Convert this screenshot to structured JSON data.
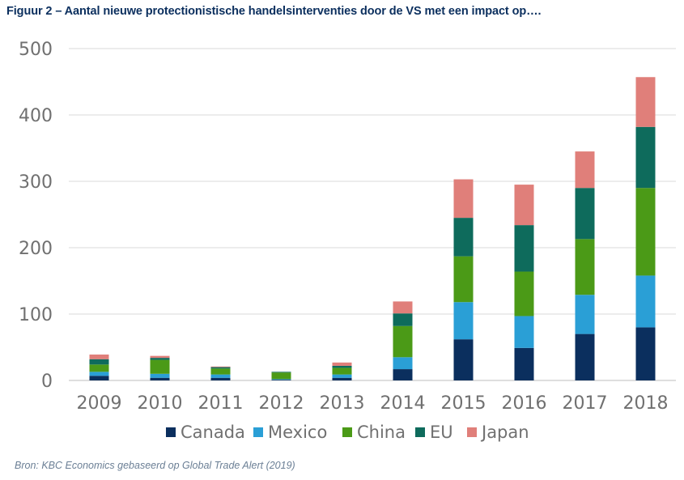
{
  "title": "Figuur 2 – Aantal nieuwe protectionistische handelsinterventies door de VS met een impact op….",
  "source": "Bron: KBC Economics gebaseerd op Global Trade Alert (2019)",
  "chart_data": {
    "type": "bar",
    "stacked": true,
    "categories": [
      "2009",
      "2010",
      "2011",
      "2012",
      "2013",
      "2014",
      "2015",
      "2016",
      "2017",
      "2018"
    ],
    "series": [
      {
        "name": "Canada",
        "color": "#0b2f5e",
        "values": [
          7,
          4,
          4,
          1,
          4,
          17,
          62,
          49,
          70,
          80
        ]
      },
      {
        "name": "Mexico",
        "color": "#2a9fd6",
        "values": [
          6,
          6,
          5,
          1,
          5,
          18,
          56,
          48,
          59,
          78
        ]
      },
      {
        "name": "China",
        "color": "#4b9a17",
        "values": [
          11,
          21,
          9,
          10,
          10,
          47,
          69,
          67,
          84,
          132
        ]
      },
      {
        "name": "EU",
        "color": "#0e6b5c",
        "values": [
          8,
          3,
          2,
          1,
          3,
          19,
          58,
          70,
          77,
          92
        ]
      },
      {
        "name": "Japan",
        "color": "#e07f7a",
        "values": [
          7,
          3,
          1,
          0,
          5,
          18,
          58,
          61,
          55,
          75
        ]
      }
    ],
    "ylim": [
      0,
      500
    ],
    "yticks": [
      0,
      100,
      200,
      300,
      400,
      500
    ],
    "grid": true,
    "legend": "bottom"
  }
}
